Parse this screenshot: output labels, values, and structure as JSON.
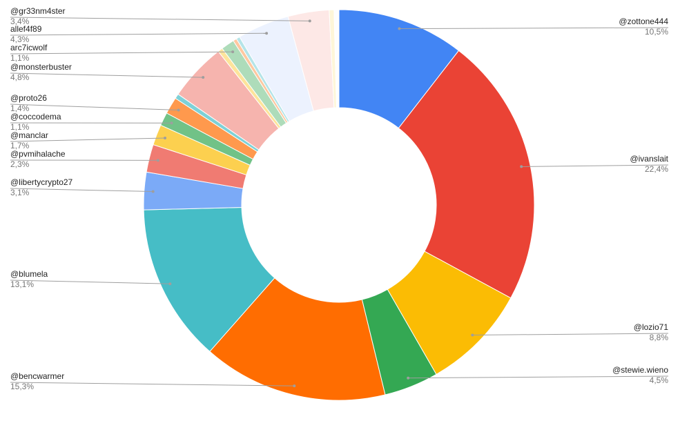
{
  "chart_data": {
    "type": "donut",
    "categories": [
      "@zottone444",
      "@ivanslait",
      "@lozio71",
      "@stewie.wieno",
      "@bencwarmer",
      "@blumela",
      "@libertycrypto27",
      "@pvmihalache",
      "@manclar",
      "@coccodema",
      "@proto26",
      null,
      "@monsterbuster",
      null,
      "arc7icwolf",
      null,
      null,
      "allef4f89",
      "@gr33nm4ster",
      null,
      null
    ],
    "values": [
      10.5,
      22.4,
      8.8,
      4.5,
      15.3,
      13.1,
      3.1,
      2.3,
      1.7,
      1.1,
      1.4,
      0.4,
      4.8,
      0.4,
      1.1,
      0.3,
      0.3,
      4.3,
      3.4,
      0.4,
      0.4
    ],
    "value_labels": [
      "10,5%",
      "22,4%",
      "8,8%",
      "4,5%",
      "15,3%",
      "13,1%",
      "3,1%",
      "2,3%",
      "1,7%",
      "1,1%",
      "1,4%",
      null,
      "4,8%",
      null,
      "1,1%",
      null,
      null,
      "4,3%",
      "3,4%",
      null,
      null
    ],
    "colors": [
      "#4285f4",
      "#ea4335",
      "#fbbc04",
      "#34a853",
      "#ff6d01",
      "#46bdc6",
      "#7baaf7",
      "#f07b72",
      "#fcd04f",
      "#71c287",
      "#ff994d",
      "#7ed1d7",
      "#f6b4ae",
      "#fde49b",
      "#aedcba",
      "#ffc8a0",
      "#b5e4e8",
      "#ecf2fe",
      "#fde8e6",
      "#fef6d8",
      "#fdfdfd"
    ]
  }
}
